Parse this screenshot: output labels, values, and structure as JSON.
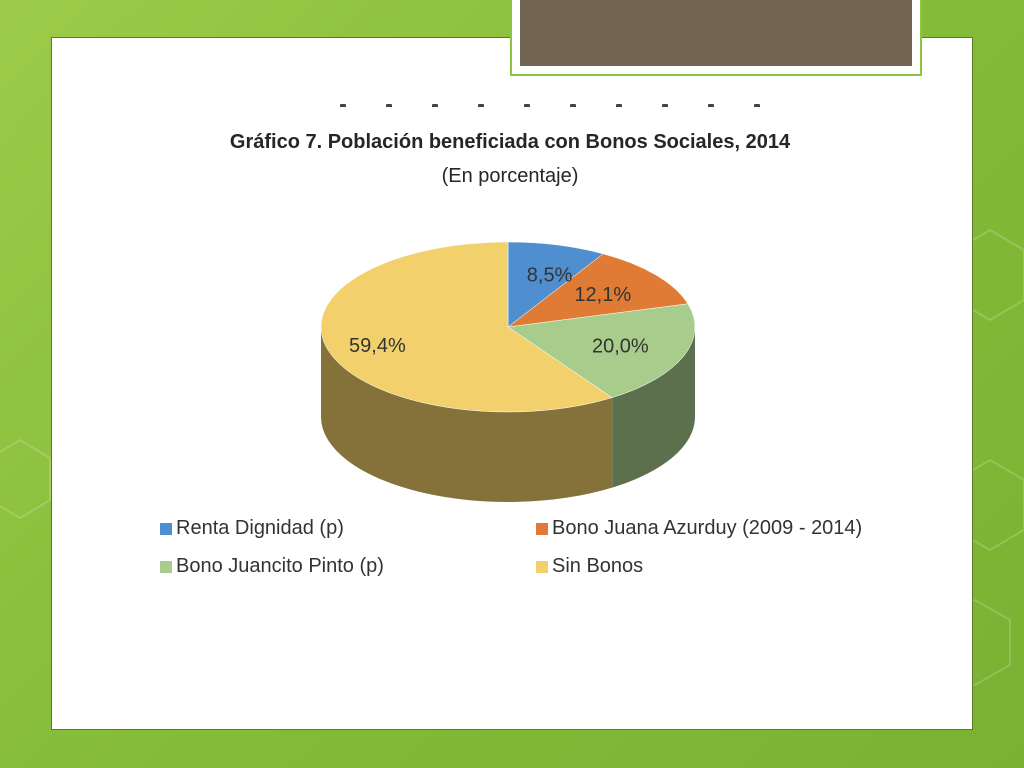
{
  "chart_data": {
    "type": "pie",
    "title": "Gráfico 7. Población beneficiada con Bonos Sociales, 2014",
    "subtitle": "(En porcentaje)",
    "slices": [
      {
        "name": "Renta Dignidad (p)",
        "value": 8.5,
        "label": "8,5%",
        "color": "#4f8fcf"
      },
      {
        "name": "Bono Juana Azurduy (2009 - 2014)",
        "value": 12.1,
        "label": "12,1%",
        "color": "#e07b35"
      },
      {
        "name": "Bono Juancito Pinto (p)",
        "value": 20.0,
        "label": "20,0%",
        "color": "#a8cc8c"
      },
      {
        "name": "Sin Bonos",
        "value": 59.4,
        "label": "59,4%",
        "color": "#f2d06b"
      }
    ],
    "legend_position": "bottom"
  },
  "colors": {
    "background": "#8cc63f",
    "title_bar": "#716552"
  }
}
